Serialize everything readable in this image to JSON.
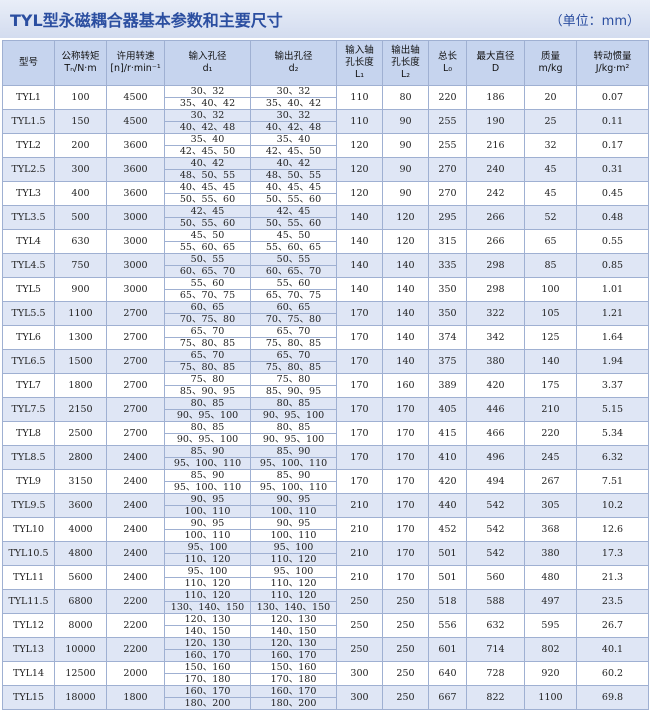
{
  "title": "TYL型永磁耦合器基本参数和主要尺寸",
  "unit": "（单位：mm）",
  "table": {
    "header": [
      [
        "型号"
      ],
      [
        "公称转矩",
        "Tₙ/N·m"
      ],
      [
        "许用转速",
        "[n]/r·min⁻¹"
      ],
      [
        "输入孔径",
        "d₁"
      ],
      [
        "输出孔径",
        "d₂"
      ],
      [
        "输入轴",
        "孔长度",
        "L₁"
      ],
      [
        "输出轴",
        "孔长度",
        "L₂"
      ],
      [
        "总长",
        "L₀"
      ],
      [
        "最大直径",
        "D"
      ],
      [
        "质量",
        "m/kg"
      ],
      [
        "转动惯量",
        "J/kg·m²"
      ]
    ],
    "rows": [
      [
        "TYL1",
        "100",
        "4500",
        [
          "30、32",
          "35、40、42"
        ],
        [
          "30、32",
          "35、40、42"
        ],
        "110",
        "80",
        "220",
        "186",
        "20",
        "0.07"
      ],
      [
        "TYL1.5",
        "150",
        "4500",
        [
          "30、32",
          "40、42、48"
        ],
        [
          "30、32",
          "40、42、48"
        ],
        "110",
        "90",
        "255",
        "190",
        "25",
        "0.11"
      ],
      [
        "TYL2",
        "200",
        "3600",
        [
          "35、40",
          "42、45、50"
        ],
        [
          "35、40",
          "42、45、50"
        ],
        "120",
        "90",
        "255",
        "216",
        "32",
        "0.17"
      ],
      [
        "TYL2.5",
        "300",
        "3600",
        [
          "40、42",
          "48、50、55"
        ],
        [
          "40、42",
          "48、50、55"
        ],
        "120",
        "90",
        "270",
        "240",
        "45",
        "0.31"
      ],
      [
        "TYL3",
        "400",
        "3600",
        [
          "40、45、45",
          "50、55、60"
        ],
        [
          "40、45、45",
          "50、55、60"
        ],
        "120",
        "90",
        "270",
        "242",
        "45",
        "0.45"
      ],
      [
        "TYL3.5",
        "500",
        "3000",
        [
          "42、45",
          "50、55、60"
        ],
        [
          "42、45",
          "50、55、60"
        ],
        "140",
        "120",
        "295",
        "266",
        "52",
        "0.48"
      ],
      [
        "TYL4",
        "630",
        "3000",
        [
          "45、50",
          "55、60、65"
        ],
        [
          "45、50",
          "55、60、65"
        ],
        "140",
        "120",
        "315",
        "266",
        "65",
        "0.55"
      ],
      [
        "TYL4.5",
        "750",
        "3000",
        [
          "50、55",
          "60、65、70"
        ],
        [
          "50、55",
          "60、65、70"
        ],
        "140",
        "140",
        "335",
        "298",
        "85",
        "0.85"
      ],
      [
        "TYL5",
        "900",
        "3000",
        [
          "55、60",
          "65、70、75"
        ],
        [
          "55、60",
          "65、70、75"
        ],
        "140",
        "140",
        "350",
        "298",
        "100",
        "1.01"
      ],
      [
        "TYL5.5",
        "1100",
        "2700",
        [
          "60、65",
          "70、75、80"
        ],
        [
          "60、65",
          "70、75、80"
        ],
        "170",
        "140",
        "350",
        "322",
        "105",
        "1.21"
      ],
      [
        "TYL6",
        "1300",
        "2700",
        [
          "65、70",
          "75、80、85"
        ],
        [
          "65、70",
          "75、80、85"
        ],
        "170",
        "140",
        "374",
        "342",
        "125",
        "1.64"
      ],
      [
        "TYL6.5",
        "1500",
        "2700",
        [
          "65、70",
          "75、80、85"
        ],
        [
          "65、70",
          "75、80、85"
        ],
        "170",
        "140",
        "375",
        "380",
        "140",
        "1.94"
      ],
      [
        "TYL7",
        "1800",
        "2700",
        [
          "75、80",
          "85、90、95"
        ],
        [
          "75、80",
          "85、90、95"
        ],
        "170",
        "160",
        "389",
        "420",
        "175",
        "3.37"
      ],
      [
        "TYL7.5",
        "2150",
        "2700",
        [
          "80、85",
          "90、95、100"
        ],
        [
          "80、85",
          "90、95、100"
        ],
        "170",
        "170",
        "405",
        "446",
        "210",
        "5.15"
      ],
      [
        "TYL8",
        "2500",
        "2700",
        [
          "80、85",
          "90、95、100"
        ],
        [
          "80、85",
          "90、95、100"
        ],
        "170",
        "170",
        "415",
        "466",
        "220",
        "5.34"
      ],
      [
        "TYL8.5",
        "2800",
        "2400",
        [
          "85、90",
          "95、100、110"
        ],
        [
          "85、90",
          "95、100、110"
        ],
        "170",
        "170",
        "410",
        "496",
        "245",
        "6.32"
      ],
      [
        "TYL9",
        "3150",
        "2400",
        [
          "85、90",
          "95、100、110"
        ],
        [
          "85、90",
          "95、100、110"
        ],
        "170",
        "170",
        "420",
        "494",
        "267",
        "7.51"
      ],
      [
        "TYL9.5",
        "3600",
        "2400",
        [
          "90、95",
          "100、110"
        ],
        [
          "90、95",
          "100、110"
        ],
        "210",
        "170",
        "440",
        "542",
        "305",
        "10.2"
      ],
      [
        "TYL10",
        "4000",
        "2400",
        [
          "90、95",
          "100、110"
        ],
        [
          "90、95",
          "100、110"
        ],
        "210",
        "170",
        "452",
        "542",
        "368",
        "12.6"
      ],
      [
        "TYL10.5",
        "4800",
        "2400",
        [
          "95、100",
          "110、120"
        ],
        [
          "95、100",
          "110、120"
        ],
        "210",
        "170",
        "501",
        "542",
        "380",
        "17.3"
      ],
      [
        "TYL11",
        "5600",
        "2400",
        [
          "95、100",
          "110、120"
        ],
        [
          "95、100",
          "110、120"
        ],
        "210",
        "170",
        "501",
        "560",
        "480",
        "21.3"
      ],
      [
        "TYL11.5",
        "6800",
        "2200",
        [
          "110、120",
          "130、140、150"
        ],
        [
          "110、120",
          "130、140、150"
        ],
        "250",
        "250",
        "518",
        "588",
        "497",
        "23.5"
      ],
      [
        "TYL12",
        "8000",
        "2200",
        [
          "120、130",
          "140、150"
        ],
        [
          "120、130",
          "140、150"
        ],
        "250",
        "250",
        "556",
        "632",
        "595",
        "26.7"
      ],
      [
        "TYL13",
        "10000",
        "2200",
        [
          "120、130",
          "160、170"
        ],
        [
          "120、130",
          "160、170"
        ],
        "250",
        "250",
        "601",
        "714",
        "802",
        "40.1"
      ],
      [
        "TYL14",
        "12500",
        "2000",
        [
          "150、160",
          "170、180"
        ],
        [
          "150、160",
          "170、180"
        ],
        "300",
        "250",
        "640",
        "728",
        "920",
        "60.2"
      ],
      [
        "TYL15",
        "18000",
        "1800",
        [
          "160、170",
          "180、200"
        ],
        [
          "160、170",
          "180、200"
        ],
        "300",
        "250",
        "667",
        "822",
        "1100",
        "69.8"
      ]
    ]
  }
}
